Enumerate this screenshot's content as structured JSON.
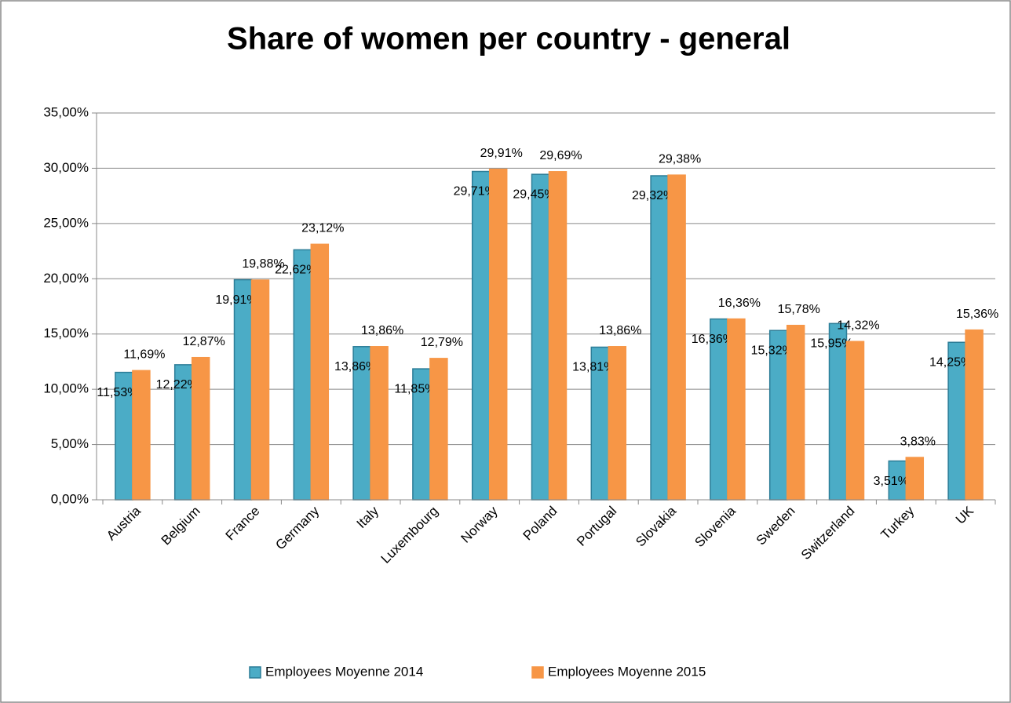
{
  "chart_data": {
    "type": "bar",
    "title": "Share of women per country - general",
    "categories": [
      "Austria",
      "Belgium",
      "France",
      "Germany",
      "Italy",
      "Luxembourg",
      "Norway",
      "Poland",
      "Portugal",
      "Slovakia",
      "Slovenia",
      "Sweden",
      "Switzerland",
      "Turkey",
      "UK"
    ],
    "series": [
      {
        "name": "Employees Moyenne 2014",
        "color": "#4bacc6",
        "border": "#2c7d97",
        "values": [
          11.53,
          12.22,
          19.91,
          22.62,
          13.86,
          11.85,
          29.71,
          29.45,
          13.81,
          29.32,
          16.36,
          15.32,
          15.95,
          3.51,
          14.25
        ],
        "value_labels": [
          "11,53%",
          "12,22%",
          "19,91%",
          "22,62%",
          "13,86%",
          "11,85%",
          "29,71%",
          "29,45%",
          "13,81%",
          "29,32%",
          "16,36%",
          "15,32%",
          "15,95%",
          "3,51%",
          "14,25%"
        ]
      },
      {
        "name": "Employees Moyenne 2015",
        "color": "#f79646",
        "border": "#f79646",
        "values": [
          11.69,
          12.87,
          19.88,
          23.12,
          13.86,
          12.79,
          29.91,
          29.69,
          13.86,
          29.38,
          16.36,
          15.78,
          14.32,
          3.83,
          15.36
        ],
        "value_labels": [
          "11,69%",
          "12,87%",
          "19,88%",
          "23,12%",
          "13,86%",
          "12,79%",
          "29,91%",
          "29,69%",
          "13,86%",
          "29,38%",
          "16,36%",
          "15,78%",
          "14,32%",
          "3,83%",
          "15,36%"
        ]
      }
    ],
    "ylim": [
      0,
      35
    ],
    "yticks": [
      {
        "value": 0,
        "label": "0,00%"
      },
      {
        "value": 5,
        "label": "5,00%"
      },
      {
        "value": 10,
        "label": "10,00%"
      },
      {
        "value": 15,
        "label": "15,00%"
      },
      {
        "value": 20,
        "label": "20,00%"
      },
      {
        "value": 25,
        "label": "25,00%"
      },
      {
        "value": 30,
        "label": "30,00%"
      },
      {
        "value": 35,
        "label": "35,00%"
      }
    ],
    "grid": true,
    "legend": "bottom"
  }
}
